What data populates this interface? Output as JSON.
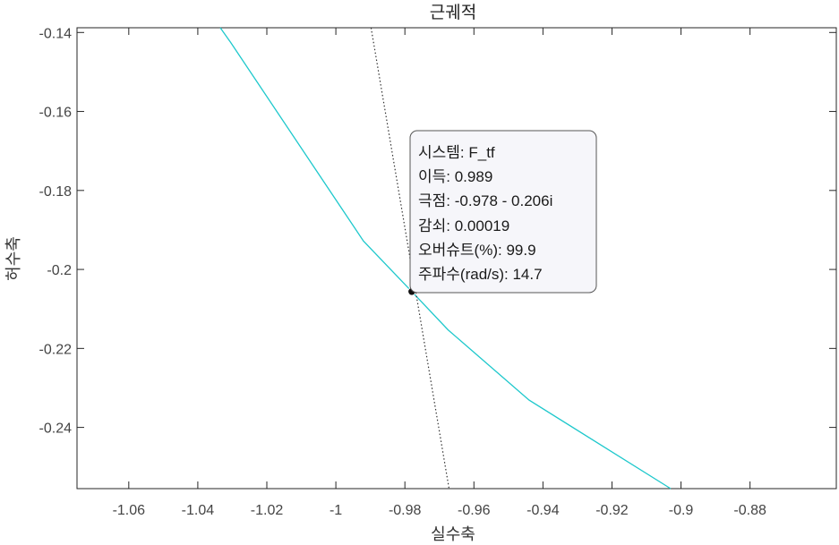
{
  "chart_data": {
    "type": "line",
    "title": "근궤적",
    "xlabel": "실수축",
    "ylabel": "허수축",
    "xlim": [
      -1.075,
      -0.855
    ],
    "ylim": [
      -0.2555,
      -0.1388
    ],
    "xticks": [
      -1.06,
      -1.04,
      -1.02,
      -1.0,
      -0.98,
      -0.96,
      -0.94,
      -0.92,
      -0.9,
      -0.88
    ],
    "xtick_labels": [
      "-1.06",
      "-1.04",
      "-1.02",
      "-1",
      "-0.98",
      "-0.96",
      "-0.94",
      "-0.92",
      "-0.9",
      "-0.88"
    ],
    "yticks": [
      -0.24,
      -0.22,
      -0.2,
      -0.18,
      -0.16,
      -0.14
    ],
    "ytick_labels": [
      "-0.24",
      "-0.22",
      "-0.2",
      "-0.18",
      "-0.16",
      "-0.14"
    ],
    "grid": false,
    "series": [
      {
        "color": "#1ec8cc",
        "style": "solid",
        "x": [
          -1.0335,
          -1.0305,
          -0.992,
          -0.978,
          -0.9675,
          -0.944,
          -0.903
        ],
        "y": [
          -0.1388,
          -0.1425,
          -0.1928,
          -0.2056,
          -0.2153,
          -0.2331,
          -0.2555
        ]
      },
      {
        "color": "#333333",
        "style": "dotted",
        "x": [
          -0.9898,
          -0.9672
        ],
        "y": [
          -0.1388,
          -0.2555
        ]
      }
    ],
    "marker": {
      "x": -0.978,
      "y": -0.2056
    },
    "datatip": {
      "lines": [
        "시스템: F_tf",
        "이득: 0.989",
        "극점: -0.978 - 0.206i",
        "감쇠: 0.00019",
        "오버슈트(%): 99.9",
        "주파수(rad/s): 14.7"
      ]
    }
  }
}
